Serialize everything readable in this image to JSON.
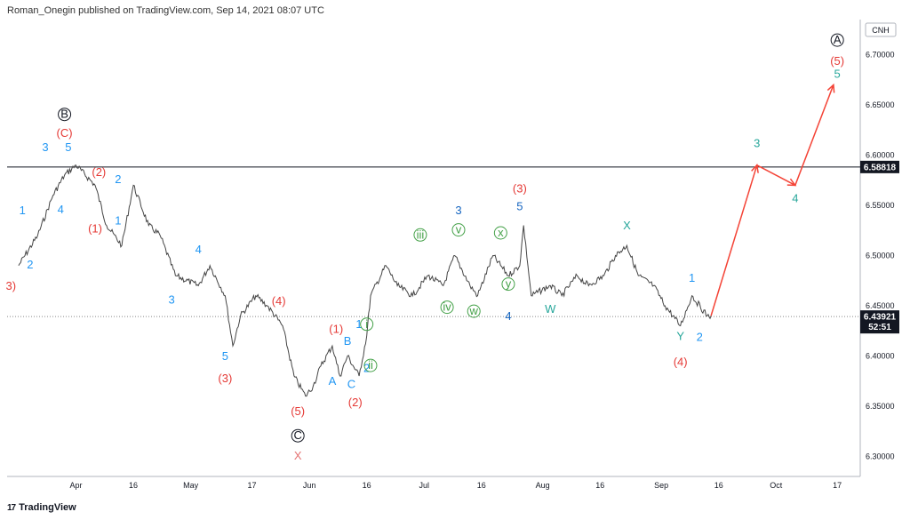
{
  "header": {
    "text": "Roman_Onegin published on TradingView.com, Sep 14, 2021 08:07 UTC"
  },
  "footer": {
    "logo_glyph": "17",
    "brand": "TradingView"
  },
  "chart_data": {
    "type": "line",
    "symbol": "CNH",
    "x_axis": {
      "tick_labels": [
        "Apr",
        "16",
        "May",
        "17",
        "Jun",
        "16",
        "Jul",
        "16",
        "Aug",
        "16",
        "Sep",
        "16",
        "Oct",
        "17"
      ]
    },
    "y_axis": {
      "range": [
        6.28,
        6.735
      ],
      "tick_labels": [
        "6.70000",
        "6.65000",
        "6.60000",
        "6.55000",
        "6.50000",
        "6.45000",
        "6.40000",
        "6.35000",
        "6.30000"
      ],
      "tick_values": [
        6.7,
        6.65,
        6.6,
        6.55,
        6.5,
        6.45,
        6.4,
        6.35,
        6.3
      ]
    },
    "x": [
      "Mar 17",
      "Mar 22",
      "Mar 26",
      "Mar 29",
      "Apr 1",
      "Apr 6",
      "Apr 9",
      "Apr 13",
      "Apr 16",
      "Apr 20",
      "Apr 23",
      "Apr 27",
      "May 3",
      "May 6",
      "May 10",
      "May 12",
      "May 14",
      "May 18",
      "May 21",
      "May 25",
      "May 28",
      "May 31",
      "Jun 2",
      "Jun 4",
      "Jun 7",
      "Jun 9",
      "Jun 11",
      "Jun 14",
      "Jun 16",
      "Jun 17",
      "Jun 21",
      "Jun 24",
      "Jun 28",
      "Jul 2",
      "Jul 6",
      "Jul 9",
      "Jul 13",
      "Jul 15",
      "Jul 19",
      "Jul 23",
      "Jul 26",
      "Jul 27",
      "Jul 29",
      "Aug 3",
      "Aug 6",
      "Aug 10",
      "Aug 13",
      "Aug 17",
      "Aug 20",
      "Aug 23",
      "Aug 26",
      "Aug 30",
      "Sep 2",
      "Sep 6",
      "Sep 9",
      "Sep 13",
      "Sep 14"
    ],
    "series": [
      {
        "values": [
          6.49,
          6.52,
          6.56,
          6.58,
          6.59,
          6.57,
          6.53,
          6.51,
          6.57,
          6.53,
          6.52,
          6.48,
          6.47,
          6.49,
          6.46,
          6.41,
          6.44,
          6.46,
          6.45,
          6.43,
          6.38,
          6.36,
          6.37,
          6.39,
          6.41,
          6.38,
          6.4,
          6.38,
          6.42,
          6.46,
          6.49,
          6.47,
          6.46,
          6.48,
          6.47,
          6.5,
          6.47,
          6.46,
          6.5,
          6.48,
          6.49,
          6.53,
          6.46,
          6.47,
          6.46,
          6.48,
          6.47,
          6.48,
          6.5,
          6.51,
          6.48,
          6.47,
          6.45,
          6.43,
          6.46,
          6.44,
          6.44
        ]
      }
    ],
    "projection": {
      "x": [
        "Sep 14",
        "Sep 26",
        "Oct 6",
        "Oct 16"
      ],
      "values": [
        6.44,
        6.59,
        6.57,
        6.67
      ]
    },
    "horizontal_line": {
      "value": 6.58818,
      "label": "6.58818"
    },
    "last_price": {
      "value": 6.43921,
      "label": "6.43921",
      "countdown": "52:51"
    },
    "wave_labels": [
      {
        "text": "B",
        "x": "Mar 29",
        "y": 6.637,
        "color": "#131722",
        "circle": true
      },
      {
        "text": "(C)",
        "x": "Mar 29",
        "y": 6.618,
        "color": "#e53935"
      },
      {
        "text": "3",
        "x": "Mar 24",
        "y": 6.604,
        "color": "#2196f3"
      },
      {
        "text": "5",
        "x": "Mar 30",
        "y": 6.604,
        "color": "#2196f3"
      },
      {
        "text": "(2)",
        "x": "Apr 7",
        "y": 6.579,
        "color": "#e53935"
      },
      {
        "text": "2",
        "x": "Apr 12",
        "y": 6.572,
        "color": "#2196f3"
      },
      {
        "text": "1",
        "x": "Mar 18",
        "y": 6.541,
        "color": "#2196f3"
      },
      {
        "text": "4",
        "x": "Mar 28",
        "y": 6.542,
        "color": "#2196f3"
      },
      {
        "text": "(1)",
        "x": "Apr 6",
        "y": 6.523,
        "color": "#e53935"
      },
      {
        "text": "1",
        "x": "Apr 12",
        "y": 6.531,
        "color": "#2196f3"
      },
      {
        "text": "2",
        "x": "Mar 20",
        "y": 6.487,
        "color": "#2196f3"
      },
      {
        "text": "3)",
        "x": "Mar 15",
        "y": 6.466,
        "color": "#e53935"
      },
      {
        "text": "4",
        "x": "May 3",
        "y": 6.502,
        "color": "#2196f3"
      },
      {
        "text": "3",
        "x": "Apr 26",
        "y": 6.452,
        "color": "#2196f3"
      },
      {
        "text": "5",
        "x": "May 10",
        "y": 6.396,
        "color": "#2196f3"
      },
      {
        "text": "(3)",
        "x": "May 10",
        "y": 6.374,
        "color": "#e53935"
      },
      {
        "text": "(4)",
        "x": "May 24",
        "y": 6.451,
        "color": "#e53935"
      },
      {
        "text": "(5)",
        "x": "May 29",
        "y": 6.341,
        "color": "#e53935"
      },
      {
        "text": "C",
        "x": "May 29",
        "y": 6.317,
        "color": "#131722",
        "circle": true
      },
      {
        "text": "X",
        "x": "May 29",
        "y": 6.297,
        "color": "#e57373"
      },
      {
        "text": "(1)",
        "x": "Jun 8",
        "y": 6.423,
        "color": "#e53935"
      },
      {
        "text": "B",
        "x": "Jun 11",
        "y": 6.411,
        "color": "#2196f3"
      },
      {
        "text": "A",
        "x": "Jun 7",
        "y": 6.371,
        "color": "#2196f3"
      },
      {
        "text": "C",
        "x": "Jun 12",
        "y": 6.368,
        "color": "#2196f3"
      },
      {
        "text": "(2)",
        "x": "Jun 13",
        "y": 6.35,
        "color": "#e53935"
      },
      {
        "text": "1",
        "x": "Jun 14",
        "y": 6.428,
        "color": "#2196f3"
      },
      {
        "text": "i",
        "x": "Jun 16",
        "y": 6.428,
        "color": "#43a047",
        "circle": true
      },
      {
        "text": "2",
        "x": "Jun 16",
        "y": 6.384,
        "color": "#2196f3"
      },
      {
        "text": "ii",
        "x": "Jun 17",
        "y": 6.387,
        "color": "#43a047",
        "circle": true
      },
      {
        "text": "iii",
        "x": "Jun 30",
        "y": 6.517,
        "color": "#43a047",
        "circle": true
      },
      {
        "text": "iv",
        "x": "Jul 7",
        "y": 6.445,
        "color": "#43a047",
        "circle": true
      },
      {
        "text": "v",
        "x": "Jul 10",
        "y": 6.522,
        "color": "#43a047",
        "circle": true
      },
      {
        "text": "3",
        "x": "Jul 10",
        "y": 6.541,
        "color": "#1565c0"
      },
      {
        "text": "w",
        "x": "Jul 14",
        "y": 6.441,
        "color": "#43a047",
        "circle": true
      },
      {
        "text": "x",
        "x": "Jul 21",
        "y": 6.519,
        "color": "#43a047",
        "circle": true
      },
      {
        "text": "y",
        "x": "Jul 23",
        "y": 6.468,
        "color": "#43a047",
        "circle": true
      },
      {
        "text": "4",
        "x": "Jul 23",
        "y": 6.436,
        "color": "#1565c0"
      },
      {
        "text": "(3)",
        "x": "Jul 26",
        "y": 6.563,
        "color": "#e53935"
      },
      {
        "text": "5",
        "x": "Jul 26",
        "y": 6.545,
        "color": "#1565c0"
      },
      {
        "text": "W",
        "x": "Aug 3",
        "y": 6.443,
        "color": "#26a69a"
      },
      {
        "text": "X",
        "x": "Aug 23",
        "y": 6.526,
        "color": "#26a69a"
      },
      {
        "text": "1",
        "x": "Sep 9",
        "y": 6.474,
        "color": "#2196f3"
      },
      {
        "text": "Y",
        "x": "Sep 6",
        "y": 6.416,
        "color": "#26a69a"
      },
      {
        "text": "(4)",
        "x": "Sep 6",
        "y": 6.39,
        "color": "#e53935"
      },
      {
        "text": "2",
        "x": "Sep 11",
        "y": 6.415,
        "color": "#2196f3"
      },
      {
        "text": "3",
        "x": "Sep 26",
        "y": 6.608,
        "color": "#26a69a"
      },
      {
        "text": "4",
        "x": "Oct 6",
        "y": 6.553,
        "color": "#26a69a"
      },
      {
        "text": "A",
        "x": "Oct 17",
        "y": 6.711,
        "color": "#131722",
        "circle": true
      },
      {
        "text": "(5)",
        "x": "Oct 17",
        "y": 6.69,
        "color": "#e53935"
      },
      {
        "text": "5",
        "x": "Oct 17",
        "y": 6.677,
        "color": "#26a69a"
      }
    ],
    "colors": {
      "price_line": "#444444",
      "projection": "#f44336",
      "horizontal_line": "#131722",
      "last_price_line": "#888888",
      "price_tag_bg": "#131722"
    }
  }
}
